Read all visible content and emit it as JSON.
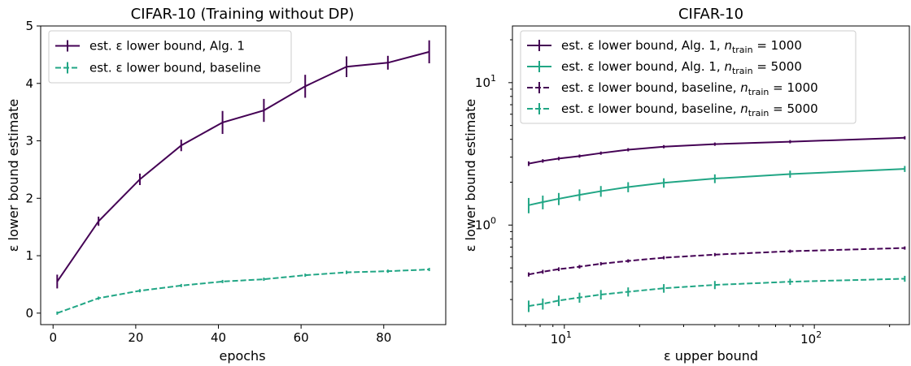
{
  "colors": {
    "purple": "#440154",
    "teal": "#21a685"
  },
  "chart_data": [
    {
      "type": "line",
      "title": "CIFAR-10 (Training without DP)",
      "xlabel": "epochs",
      "ylabel": "ε lower bound estimate",
      "xlim": [
        -3,
        95
      ],
      "ylim": [
        -0.2,
        5
      ],
      "xticks": [
        0,
        20,
        40,
        60,
        80
      ],
      "yticks": [
        0,
        1,
        2,
        3,
        4,
        5
      ],
      "legend_position": "top-left",
      "grid": false,
      "x": [
        1,
        11,
        21,
        31,
        41,
        51,
        61,
        71,
        81,
        91
      ],
      "series": [
        {
          "name": "est. ε lower bound, Alg. 1",
          "color": "#440154",
          "dashed": false,
          "values": [
            0.55,
            1.6,
            2.33,
            2.92,
            3.32,
            3.53,
            3.95,
            4.29,
            4.36,
            4.55
          ],
          "errors": [
            0.12,
            0.08,
            0.1,
            0.1,
            0.2,
            0.2,
            0.2,
            0.18,
            0.12,
            0.2
          ]
        },
        {
          "name": "est. ε lower bound, baseline",
          "color": "#21a685",
          "dashed": true,
          "values": [
            0.0,
            0.26,
            0.39,
            0.48,
            0.55,
            0.59,
            0.66,
            0.71,
            0.73,
            0.76
          ],
          "errors": [
            0.01,
            0.02,
            0.01,
            0.01,
            0.02,
            0.02,
            0.01,
            0.03,
            0.02,
            0.02
          ]
        }
      ]
    },
    {
      "type": "line",
      "scale": "log",
      "title": "CIFAR-10",
      "xlabel": "ε upper bound",
      "ylabel": "ε lower bound estimate",
      "xlim": [
        6.2,
        240
      ],
      "ylim": [
        0.2,
        25
      ],
      "xticks": [
        {
          "value": 10,
          "mantissa": "10",
          "exponent": "1"
        },
        {
          "value": 100,
          "mantissa": "10",
          "exponent": "2"
        }
      ],
      "yticks": [
        {
          "value": 1,
          "mantissa": "10",
          "exponent": "0"
        },
        {
          "value": 10,
          "mantissa": "10",
          "exponent": "1"
        }
      ],
      "legend_position": "top-left",
      "grid": false,
      "x": [
        7.2,
        8.2,
        9.5,
        11.5,
        14,
        18,
        25,
        40,
        80,
        230
      ],
      "series": [
        {
          "name": "est. ε lower bound, Alg. 1, ",
          "n_label": "n",
          "n_sub": "train",
          "n_value": " = 1000",
          "color": "#440154",
          "dashed": false,
          "values": [
            2.7,
            2.82,
            2.93,
            3.05,
            3.2,
            3.38,
            3.55,
            3.7,
            3.85,
            4.1
          ],
          "errors": [
            0.1,
            0.08,
            0.08,
            0.08,
            0.08,
            0.08,
            0.08,
            0.08,
            0.08,
            0.08
          ]
        },
        {
          "name": "est. ε lower bound, Alg. 1, ",
          "n_label": "n",
          "n_sub": "train",
          "n_value": " = 5000",
          "color": "#21a685",
          "dashed": false,
          "values": [
            1.38,
            1.45,
            1.53,
            1.63,
            1.73,
            1.85,
            1.98,
            2.12,
            2.28,
            2.48
          ],
          "errors": [
            0.17,
            0.16,
            0.15,
            0.15,
            0.15,
            0.15,
            0.15,
            0.15,
            0.13,
            0.12
          ]
        },
        {
          "name": "est. ε lower bound, baseline, ",
          "n_label": "n",
          "n_sub": "train",
          "n_value": " = 1000",
          "color": "#440154",
          "dashed": true,
          "values": [
            0.45,
            0.47,
            0.49,
            0.51,
            0.535,
            0.56,
            0.59,
            0.62,
            0.655,
            0.69
          ],
          "errors": [
            0.015,
            0.015,
            0.015,
            0.015,
            0.015,
            0.015,
            0.015,
            0.015,
            0.015,
            0.015
          ]
        },
        {
          "name": "est. ε lower bound, baseline, ",
          "n_label": "n",
          "n_sub": "train",
          "n_value": " = 5000",
          "color": "#21a685",
          "dashed": true,
          "values": [
            0.27,
            0.28,
            0.295,
            0.31,
            0.325,
            0.34,
            0.36,
            0.38,
            0.4,
            0.42
          ],
          "errors": [
            0.025,
            0.025,
            0.025,
            0.025,
            0.025,
            0.025,
            0.025,
            0.025,
            0.02,
            0.02
          ]
        }
      ]
    }
  ]
}
